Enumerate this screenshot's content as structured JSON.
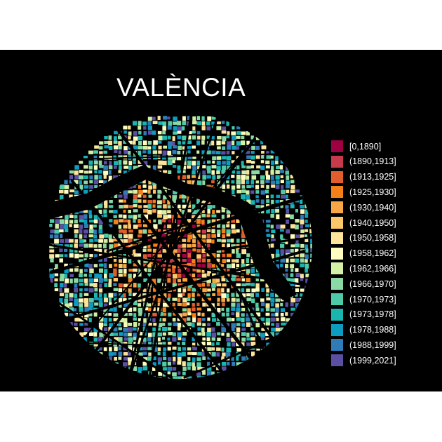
{
  "title": "VALÈNCIA",
  "legend": {
    "items": [
      {
        "label": "[0,1890]",
        "color": "#9e0142"
      },
      {
        "label": "(1890,1913]",
        "color": "#c73a4c"
      },
      {
        "label": "(1913,1925]",
        "color": "#e25d2d"
      },
      {
        "label": "(1925,1930]",
        "color": "#f4801a"
      },
      {
        "label": "(1930,1940]",
        "color": "#f7a745"
      },
      {
        "label": "(1940,1950]",
        "color": "#fcc86a"
      },
      {
        "label": "(1950,1958]",
        "color": "#fde49b"
      },
      {
        "label": "(1958,1962]",
        "color": "#fffdc0"
      },
      {
        "label": "(1962,1966]",
        "color": "#d4f0a5"
      },
      {
        "label": "(1966,1970]",
        "color": "#8bd9a4"
      },
      {
        "label": "(1970,1973]",
        "color": "#4fcaa8"
      },
      {
        "label": "(1973,1978]",
        "color": "#1bb5b0"
      },
      {
        "label": "(1978,1988]",
        "color": "#0d9bbf"
      },
      {
        "label": "(1988,1999]",
        "color": "#2e7bb8"
      },
      {
        "label": "(1999,2021]",
        "color": "#5b4fa3"
      }
    ]
  },
  "colors": {
    "background": "#000000",
    "page": "#ffffff",
    "text": "#ffffff"
  }
}
